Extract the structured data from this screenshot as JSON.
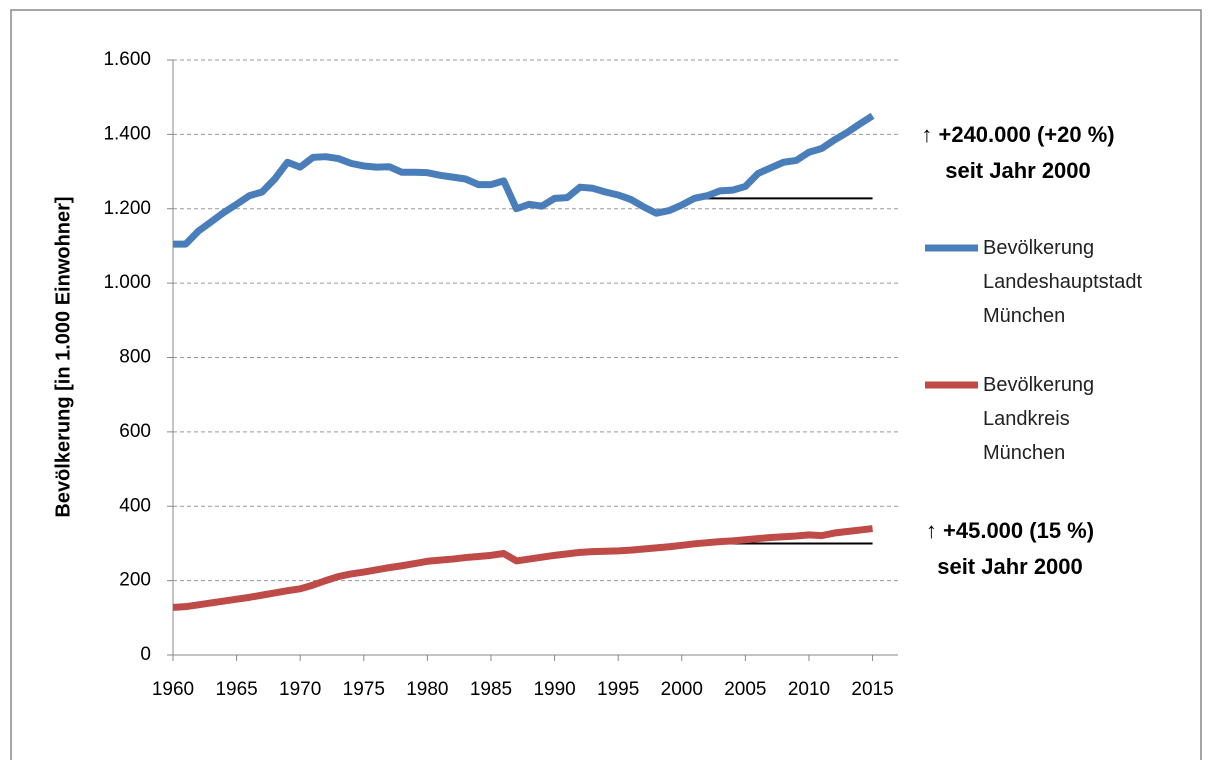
{
  "chart_data": {
    "type": "line",
    "y_label": "Bevölkerung [in 1.000 Einwohner]",
    "x": [
      1960,
      1961,
      1962,
      1963,
      1964,
      1965,
      1966,
      1967,
      1968,
      1969,
      1970,
      1971,
      1972,
      1973,
      1974,
      1975,
      1976,
      1977,
      1978,
      1979,
      1980,
      1981,
      1982,
      1983,
      1984,
      1985,
      1986,
      1987,
      1988,
      1989,
      1990,
      1991,
      1992,
      1993,
      1994,
      1995,
      1996,
      1997,
      1998,
      1999,
      2000,
      2001,
      2002,
      2003,
      2004,
      2005,
      2006,
      2007,
      2008,
      2009,
      2010,
      2011,
      2012,
      2013,
      2014,
      2015
    ],
    "series": [
      {
        "name": "Bevölkerung Landeshauptstadt München",
        "color": "#4a7ebb",
        "values": [
          1105,
          1105,
          1140,
          1165,
          1190,
          1212,
          1235,
          1245,
          1280,
          1325,
          1312,
          1338,
          1340,
          1335,
          1322,
          1315,
          1312,
          1313,
          1298,
          1298,
          1297,
          1290,
          1285,
          1280,
          1265,
          1265,
          1275,
          1200,
          1212,
          1207,
          1228,
          1230,
          1258,
          1255,
          1245,
          1237,
          1225,
          1205,
          1188,
          1195,
          1210,
          1228,
          1235,
          1248,
          1250,
          1260,
          1295,
          1310,
          1325,
          1330,
          1352,
          1362,
          1385,
          1405,
          1428,
          1450
        ]
      },
      {
        "name": "Bevölkerung Landkreis München",
        "color": "#be4b48",
        "values": [
          128,
          130,
          135,
          140,
          145,
          150,
          155,
          161,
          167,
          173,
          178,
          188,
          200,
          211,
          218,
          223,
          229,
          235,
          240,
          246,
          252,
          255,
          258,
          262,
          265,
          268,
          273,
          253,
          258,
          263,
          268,
          272,
          276,
          278,
          279,
          280,
          282,
          285,
          288,
          291,
          295,
          299,
          302,
          305,
          307,
          310,
          313,
          316,
          318,
          320,
          323,
          321,
          328,
          332,
          336,
          340
        ]
      }
    ],
    "reference_lines": [
      {
        "x": [
          2001,
          2015
        ],
        "value": 1228
      },
      {
        "x": [
          2001,
          2015
        ],
        "value": 300
      }
    ],
    "annotations": [
      {
        "lines": [
          "↑ +240.000 (+20 %)",
          "seit Jahr 2000"
        ]
      },
      {
        "lines": [
          "↑ +45.000 (15 %)",
          "seit Jahr 2000"
        ]
      }
    ],
    "xlim": [
      1960,
      2017
    ],
    "xticks": [
      1960,
      1965,
      1970,
      1975,
      1980,
      1985,
      1990,
      1995,
      2000,
      2005,
      2010,
      2015
    ],
    "ylim": [
      0,
      1600
    ],
    "yticks": [
      0,
      200,
      400,
      600,
      800,
      {
        "value": 1000,
        "label": "1.000"
      },
      {
        "value": 1200,
        "label": "1.200"
      },
      {
        "value": 1400,
        "label": "1.400"
      },
      {
        "value": 1600,
        "label": "1.600"
      }
    ],
    "grid": true
  }
}
